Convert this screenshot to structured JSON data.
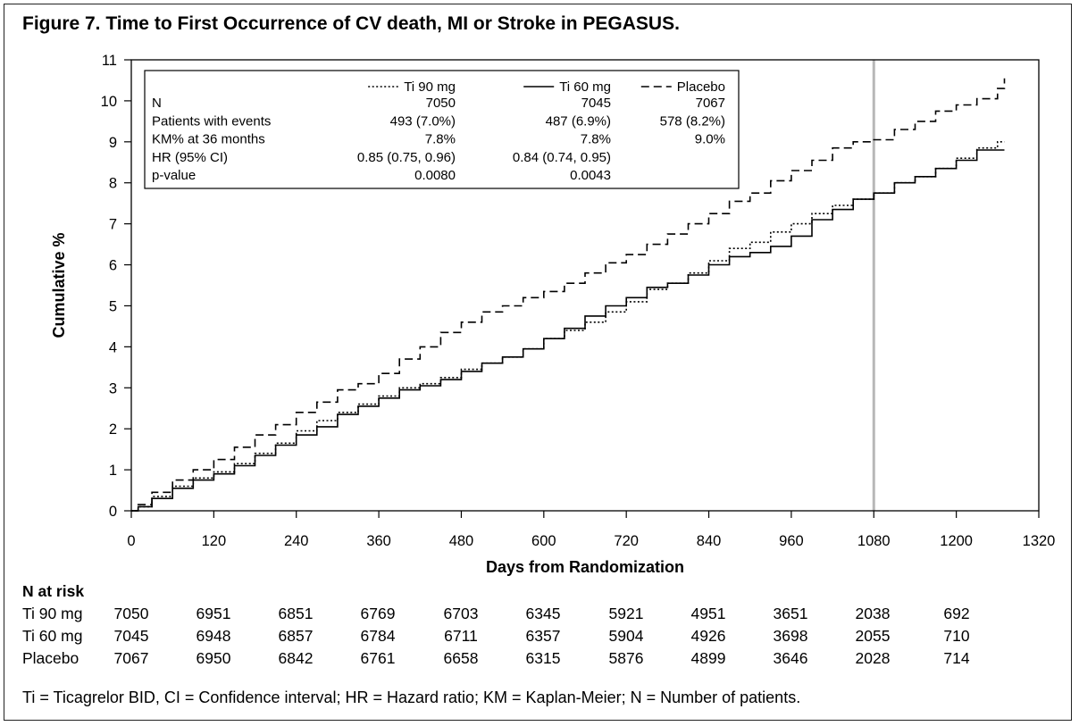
{
  "title": "Figure 7. Time to First Occurrence of CV death, MI or Stroke in PEGASUS.",
  "footnote": "Ti = Ticagrelor BID, CI = Confidence interval; HR = Hazard ratio; KM = Kaplan-Meier; N = Number of patients.",
  "chart_data": {
    "type": "line",
    "title": "Figure 7. Time to First Occurrence of CV death, MI or Stroke in PEGASUS.",
    "xlabel": "Days from Randomization",
    "ylabel": "Cumulative %",
    "xlim": [
      0,
      1320
    ],
    "ylim": [
      0,
      11
    ],
    "x_ticks": [
      0,
      120,
      240,
      360,
      480,
      600,
      720,
      840,
      960,
      1080,
      1200,
      1320
    ],
    "y_ticks": [
      0,
      1,
      2,
      3,
      4,
      5,
      6,
      7,
      8,
      9,
      10,
      11
    ],
    "reference_line_x": 1080,
    "grid": false,
    "legend_placement": "top-left inside plot",
    "series": [
      {
        "name": "Ti 90 mg",
        "style": "dotted",
        "x": [
          0,
          10,
          30,
          60,
          90,
          120,
          150,
          180,
          210,
          240,
          270,
          300,
          330,
          360,
          390,
          420,
          450,
          480,
          510,
          540,
          570,
          600,
          630,
          660,
          690,
          720,
          750,
          780,
          810,
          840,
          870,
          900,
          930,
          960,
          990,
          1020,
          1050,
          1080,
          1110,
          1140,
          1170,
          1200,
          1230,
          1260,
          1270
        ],
        "values": [
          0,
          0.1,
          0.35,
          0.6,
          0.8,
          0.95,
          1.15,
          1.4,
          1.65,
          1.95,
          2.2,
          2.4,
          2.6,
          2.8,
          3.0,
          3.1,
          3.25,
          3.45,
          3.6,
          3.75,
          3.95,
          4.2,
          4.4,
          4.6,
          4.85,
          5.1,
          5.4,
          5.55,
          5.8,
          6.1,
          6.4,
          6.55,
          6.8,
          7.0,
          7.25,
          7.45,
          7.6,
          7.75,
          8.0,
          8.15,
          8.35,
          8.6,
          8.85,
          9.0,
          9.0
        ]
      },
      {
        "name": "Ti 60 mg",
        "style": "solid",
        "x": [
          0,
          10,
          30,
          60,
          90,
          120,
          150,
          180,
          210,
          240,
          270,
          300,
          330,
          360,
          390,
          420,
          450,
          480,
          510,
          540,
          570,
          600,
          630,
          660,
          690,
          720,
          750,
          780,
          810,
          840,
          870,
          900,
          930,
          960,
          990,
          1020,
          1050,
          1080,
          1110,
          1140,
          1170,
          1200,
          1230,
          1260,
          1270
        ],
        "values": [
          0,
          0.1,
          0.3,
          0.55,
          0.75,
          0.9,
          1.1,
          1.35,
          1.6,
          1.85,
          2.05,
          2.35,
          2.55,
          2.75,
          2.95,
          3.05,
          3.2,
          3.4,
          3.6,
          3.75,
          3.95,
          4.2,
          4.45,
          4.75,
          5.0,
          5.2,
          5.45,
          5.55,
          5.75,
          6.0,
          6.2,
          6.3,
          6.45,
          6.7,
          7.1,
          7.35,
          7.6,
          7.75,
          8.0,
          8.15,
          8.35,
          8.55,
          8.8,
          8.8,
          8.8
        ]
      },
      {
        "name": "Placebo",
        "style": "dashed",
        "x": [
          0,
          10,
          30,
          60,
          90,
          120,
          150,
          180,
          210,
          240,
          270,
          300,
          330,
          360,
          390,
          420,
          450,
          480,
          510,
          540,
          570,
          600,
          630,
          660,
          690,
          720,
          750,
          780,
          810,
          840,
          870,
          900,
          930,
          960,
          990,
          1020,
          1050,
          1080,
          1110,
          1140,
          1170,
          1200,
          1230,
          1260,
          1270
        ],
        "values": [
          0,
          0.15,
          0.45,
          0.75,
          1.0,
          1.25,
          1.55,
          1.85,
          2.1,
          2.4,
          2.65,
          2.95,
          3.1,
          3.35,
          3.7,
          4.0,
          4.35,
          4.6,
          4.85,
          5.0,
          5.2,
          5.35,
          5.55,
          5.8,
          6.05,
          6.25,
          6.5,
          6.75,
          7.0,
          7.25,
          7.55,
          7.75,
          8.05,
          8.3,
          8.55,
          8.85,
          9.0,
          9.05,
          9.3,
          9.5,
          9.75,
          9.9,
          10.05,
          10.3,
          10.55
        ]
      }
    ],
    "legend_table": {
      "row_labels": [
        "N",
        "Patients with events",
        "KM% at 36 months",
        "HR (95% CI)",
        "p-value"
      ],
      "columns": [
        {
          "name": "Ti 90 mg",
          "style": "dotted",
          "values": [
            "7050",
            "493 (7.0%)",
            "7.8%",
            "0.85 (0.75, 0.96)",
            "0.0080"
          ]
        },
        {
          "name": "Ti 60 mg",
          "style": "solid",
          "values": [
            "7045",
            "487 (6.9%)",
            "7.8%",
            "0.84 (0.74, 0.95)",
            "0.0043"
          ]
        },
        {
          "name": "Placebo",
          "style": "dashed",
          "values": [
            "7067",
            "578 (8.2%)",
            "9.0%",
            "",
            ""
          ]
        }
      ]
    }
  },
  "risk_table": {
    "heading": "N at risk",
    "rows": [
      {
        "label": "Ti 90 mg",
        "values": [
          "7050",
          "6951",
          "6851",
          "6769",
          "6703",
          "6345",
          "5921",
          "4951",
          "3651",
          "2038",
          "692"
        ]
      },
      {
        "label": "Ti 60 mg",
        "values": [
          "7045",
          "6948",
          "6857",
          "6784",
          "6711",
          "6357",
          "5904",
          "4926",
          "3698",
          "2055",
          "710"
        ]
      },
      {
        "label": "Placebo",
        "values": [
          "7067",
          "6950",
          "6842",
          "6761",
          "6658",
          "6315",
          "5876",
          "4899",
          "3646",
          "2028",
          "714"
        ]
      }
    ]
  },
  "colors": {
    "line": "#000000",
    "reference_line": "#b8b8b8",
    "frame": "#222222"
  }
}
